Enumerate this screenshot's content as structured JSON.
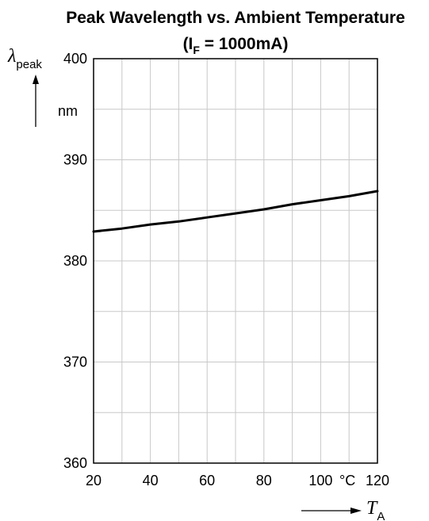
{
  "chart_data": {
    "type": "line",
    "title": "Peak Wavelength vs. Ambient Temperature",
    "subtitle_prefix": "(I",
    "subtitle_sub": "F",
    "subtitle_suffix": " = 1000mA)",
    "ylabel_symbol": "λ",
    "ylabel_sub": "peak",
    "y_unit": "nm",
    "xlabel_symbol": "T",
    "xlabel_sub": "A",
    "x_unit": "°C",
    "xlim": [
      20,
      120
    ],
    "ylim": [
      360,
      400
    ],
    "x_tick_labels": [
      "20",
      "40",
      "60",
      "80",
      "100",
      "120"
    ],
    "y_tick_labels": [
      "360",
      "370",
      "380",
      "390",
      "400"
    ],
    "grid": true,
    "series": [
      {
        "x": [
          20,
          30,
          40,
          50,
          60,
          70,
          80,
          90,
          100,
          110,
          120
        ],
        "y": [
          382.9,
          383.2,
          383.6,
          383.9,
          384.3,
          384.7,
          385.1,
          385.6,
          386.0,
          386.4,
          386.9
        ]
      }
    ]
  }
}
